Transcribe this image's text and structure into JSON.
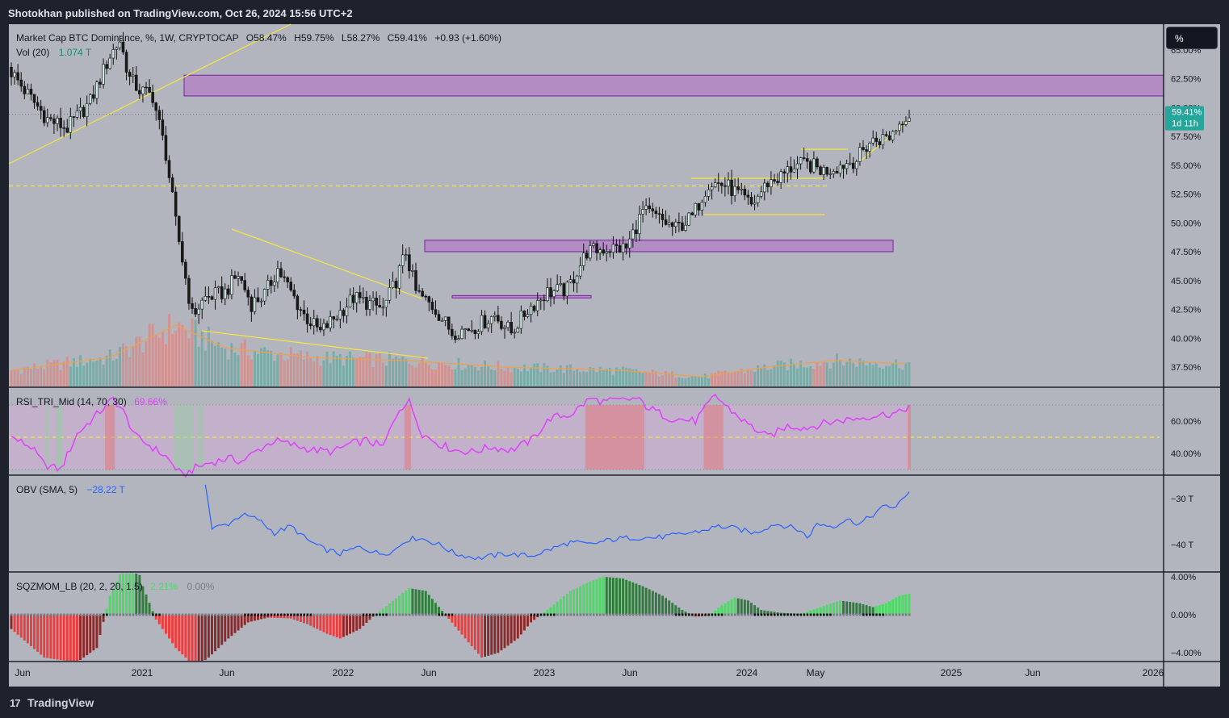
{
  "header": {
    "published": "Shotokhan published on TradingView.com, Oct 26, 2024 15:56 UTC+2"
  },
  "percent_button": "%",
  "brand": {
    "name": "TradingView",
    "logo_text": "17"
  },
  "colors": {
    "bg": "#b2b5be",
    "frame": "#1e222d",
    "up": "#0b2a26",
    "down": "#1a1a1a",
    "vol_up": "#6fa9a3",
    "vol_down": "#d88b87",
    "zone": "#b37fc6",
    "yellow": "#f5e642",
    "rsi": "#e040fb",
    "rsi_hot": "#ff1a1a",
    "obv": "#2962ff",
    "sqz_lime": "#4cd964",
    "sqz_green": "#2f7d3a",
    "sqz_red": "#ef3b3b",
    "sqz_maroon": "#8a2a2a"
  },
  "chart_data": {
    "type": "candlestick",
    "main_legend": {
      "symbol": "Market Cap BTC Dominance, %, 1W, CRYPTOCAP",
      "open": "O58.47%",
      "high": "H59.75%",
      "low": "L58.27%",
      "close": "C59.41%",
      "change": "+0.93 (+1.60%)",
      "volume_label": "Vol (20)",
      "volume_value": "1.074 T"
    },
    "x_axis_labels": [
      "Jun",
      "2021",
      "Jun",
      "2022",
      "Jun",
      "2023",
      "Jun",
      "2024",
      "May",
      "2025",
      "Jun",
      "2026"
    ],
    "y_axis_labels": [
      "65.00%",
      "62.50%",
      "60.00%",
      "57.50%",
      "55.00%",
      "52.50%",
      "50.00%",
      "47.50%",
      "45.00%",
      "42.50%",
      "40.00%",
      "37.50%"
    ],
    "last_price": {
      "value": "59.41%",
      "countdown": "1d 11h"
    },
    "price_anchors": [
      [
        0,
        63.5
      ],
      [
        5,
        61.5
      ],
      [
        12,
        59.0
      ],
      [
        18,
        58.2
      ],
      [
        25,
        60.5
      ],
      [
        31,
        64.5
      ],
      [
        34,
        65.8
      ],
      [
        37,
        62.5
      ],
      [
        40,
        61.5
      ],
      [
        44,
        61.0
      ],
      [
        48,
        56.0
      ],
      [
        51,
        50.0
      ],
      [
        56,
        42.0
      ],
      [
        60,
        43.5
      ],
      [
        66,
        44.0
      ],
      [
        70,
        45.5
      ],
      [
        74,
        43.0
      ],
      [
        78,
        43.8
      ],
      [
        82,
        46.0
      ],
      [
        86,
        44.0
      ],
      [
        90,
        42.0
      ],
      [
        95,
        40.5
      ],
      [
        100,
        42.0
      ],
      [
        105,
        43.5
      ],
      [
        110,
        43.0
      ],
      [
        114,
        42.5
      ],
      [
        118,
        45.0
      ],
      [
        121,
        47.5
      ],
      [
        124,
        44.0
      ],
      [
        130,
        42.5
      ],
      [
        135,
        40.5
      ],
      [
        142,
        41.0
      ],
      [
        148,
        42.0
      ],
      [
        153,
        40.5
      ],
      [
        158,
        42.5
      ],
      [
        164,
        44.0
      ],
      [
        170,
        44.2
      ],
      [
        176,
        47.5
      ],
      [
        182,
        47.8
      ],
      [
        188,
        47.8
      ],
      [
        193,
        51.0
      ],
      [
        197,
        50.5
      ],
      [
        203,
        49.5
      ],
      [
        208,
        50.5
      ],
      [
        213,
        53.5
      ],
      [
        218,
        53.3
      ],
      [
        222,
        52.5
      ],
      [
        226,
        51.5
      ],
      [
        231,
        53.5
      ],
      [
        235,
        54.0
      ],
      [
        239,
        55.0
      ],
      [
        244,
        55.0
      ],
      [
        248,
        54.5
      ],
      [
        253,
        55.0
      ],
      [
        258,
        55.5
      ],
      [
        262,
        57.0
      ],
      [
        268,
        57.5
      ],
      [
        273,
        59.4
      ]
    ],
    "volume_anchors": [
      [
        0,
        0.5
      ],
      [
        30,
        0.9
      ],
      [
        50,
        1.9
      ],
      [
        65,
        1.2
      ],
      [
        90,
        0.9
      ],
      [
        120,
        0.8
      ],
      [
        150,
        0.6
      ],
      [
        185,
        0.5
      ],
      [
        210,
        0.3
      ],
      [
        230,
        0.6
      ],
      [
        250,
        0.8
      ],
      [
        273,
        0.7
      ]
    ],
    "zones": [
      {
        "name": "upper-supply",
        "top": 62.8,
        "bottom": 61.0
      },
      {
        "name": "middle-supply",
        "top": 48.5,
        "bottom": 47.5
      },
      {
        "name": "lower-supply",
        "top": 43.7,
        "bottom": 43.5
      }
    ],
    "levels": [
      {
        "name": "dashed-level",
        "value": 53.2
      }
    ],
    "rsi": {
      "legend": "RSI_TRI_Mid (14, 70, 30)",
      "value": "69.66%",
      "y_axis_labels": [
        "60.00%",
        "40.00%"
      ],
      "anchors": [
        [
          0,
          50
        ],
        [
          6,
          44
        ],
        [
          10,
          33
        ],
        [
          15,
          30
        ],
        [
          20,
          52
        ],
        [
          25,
          62
        ],
        [
          31,
          74
        ],
        [
          34,
          66
        ],
        [
          38,
          50
        ],
        [
          42,
          45
        ],
        [
          47,
          38
        ],
        [
          52,
          26
        ],
        [
          56,
          31
        ],
        [
          60,
          34
        ],
        [
          66,
          37
        ],
        [
          70,
          35
        ],
        [
          75,
          42
        ],
        [
          80,
          48
        ],
        [
          86,
          45
        ],
        [
          92,
          42
        ],
        [
          98,
          41
        ],
        [
          103,
          46
        ],
        [
          108,
          48
        ],
        [
          113,
          44
        ],
        [
          118,
          68
        ],
        [
          121,
          72
        ],
        [
          125,
          52
        ],
        [
          130,
          46
        ],
        [
          135,
          42
        ],
        [
          140,
          41
        ],
        [
          146,
          44
        ],
        [
          152,
          42
        ],
        [
          158,
          48
        ],
        [
          164,
          62
        ],
        [
          170,
          64
        ],
        [
          176,
          74
        ],
        [
          180,
          72
        ],
        [
          186,
          73
        ],
        [
          190,
          74
        ],
        [
          194,
          68
        ],
        [
          200,
          62
        ],
        [
          208,
          60
        ],
        [
          214,
          76
        ],
        [
          218,
          68
        ],
        [
          224,
          58
        ],
        [
          230,
          50
        ],
        [
          236,
          57
        ],
        [
          242,
          56
        ],
        [
          248,
          59
        ],
        [
          254,
          61
        ],
        [
          258,
          62
        ],
        [
          264,
          64
        ],
        [
          270,
          65
        ],
        [
          273,
          69.7
        ]
      ]
    },
    "obv": {
      "legend": "OBV (SMA, 5)",
      "value": "−28.22 T",
      "y_axis_labels": [
        "−30 T",
        "−40 T"
      ],
      "anchors": [
        [
          59,
          -26.5
        ],
        [
          61,
          -36.5
        ],
        [
          66,
          -35.5
        ],
        [
          70,
          -33.5
        ],
        [
          75,
          -34.5
        ],
        [
          80,
          -37.5
        ],
        [
          85,
          -36.0
        ],
        [
          90,
          -39.0
        ],
        [
          95,
          -41.0
        ],
        [
          100,
          -42.0
        ],
        [
          106,
          -40.5
        ],
        [
          112,
          -42.0
        ],
        [
          116,
          -41.5
        ],
        [
          120,
          -39.0
        ],
        [
          124,
          -38.5
        ],
        [
          130,
          -40.0
        ],
        [
          135,
          -42.0
        ],
        [
          142,
          -43.0
        ],
        [
          150,
          -42.0
        ],
        [
          158,
          -42.5
        ],
        [
          164,
          -41.0
        ],
        [
          170,
          -39.5
        ],
        [
          176,
          -40.0
        ],
        [
          182,
          -39.0
        ],
        [
          188,
          -38.5
        ],
        [
          196,
          -38.5
        ],
        [
          202,
          -38.0
        ],
        [
          210,
          -37.0
        ],
        [
          215,
          -36.0
        ],
        [
          220,
          -36.5
        ],
        [
          226,
          -37.5
        ],
        [
          232,
          -35.5
        ],
        [
          236,
          -36.0
        ],
        [
          240,
          -37.0
        ],
        [
          242,
          -38.5
        ],
        [
          245,
          -35.5
        ],
        [
          250,
          -36.0
        ],
        [
          254,
          -34.5
        ],
        [
          258,
          -35.5
        ],
        [
          262,
          -33.5
        ],
        [
          266,
          -31.5
        ],
        [
          269,
          -32.0
        ],
        [
          273,
          -28.2
        ]
      ]
    },
    "sqzmom": {
      "legend": "SQZMOM_LB (20, 2, 20, 1.5)",
      "value": "2.21%",
      "zero_value": "0.00%",
      "y_axis_labels": [
        "4.00%",
        "0.00%",
        "−4.00%"
      ],
      "anchors": [
        [
          0,
          -1.5
        ],
        [
          10,
          -4.5
        ],
        [
          20,
          -5.0
        ],
        [
          26,
          -3.5
        ],
        [
          30,
          2.0
        ],
        [
          34,
          5.0
        ],
        [
          37,
          6.5
        ],
        [
          40,
          3.0
        ],
        [
          44,
          -0.5
        ],
        [
          50,
          -3.5
        ],
        [
          56,
          -5.5
        ],
        [
          60,
          -4.5
        ],
        [
          66,
          -2.5
        ],
        [
          72,
          -0.8
        ],
        [
          78,
          -0.3
        ],
        [
          85,
          -0.4
        ],
        [
          90,
          -1.0
        ],
        [
          96,
          -2.0
        ],
        [
          100,
          -2.5
        ],
        [
          106,
          -1.5
        ],
        [
          110,
          -0.2
        ],
        [
          115,
          1.2
        ],
        [
          121,
          2.8
        ],
        [
          126,
          2.5
        ],
        [
          132,
          0.0
        ],
        [
          138,
          -2.5
        ],
        [
          143,
          -4.5
        ],
        [
          148,
          -4.0
        ],
        [
          154,
          -2.5
        ],
        [
          158,
          -0.8
        ],
        [
          164,
          0.8
        ],
        [
          170,
          2.5
        ],
        [
          176,
          3.5
        ],
        [
          180,
          4.0
        ],
        [
          186,
          3.8
        ],
        [
          192,
          3.0
        ],
        [
          198,
          2.0
        ],
        [
          204,
          0.5
        ],
        [
          208,
          -0.2
        ],
        [
          212,
          -0.1
        ],
        [
          216,
          1.0
        ],
        [
          220,
          1.8
        ],
        [
          224,
          1.5
        ],
        [
          228,
          0.5
        ],
        [
          234,
          0.2
        ],
        [
          240,
          0.1
        ],
        [
          246,
          0.8
        ],
        [
          252,
          1.5
        ],
        [
          258,
          1.2
        ],
        [
          262,
          0.8
        ],
        [
          266,
          1.2
        ],
        [
          270,
          2.0
        ],
        [
          273,
          2.21
        ]
      ]
    }
  }
}
